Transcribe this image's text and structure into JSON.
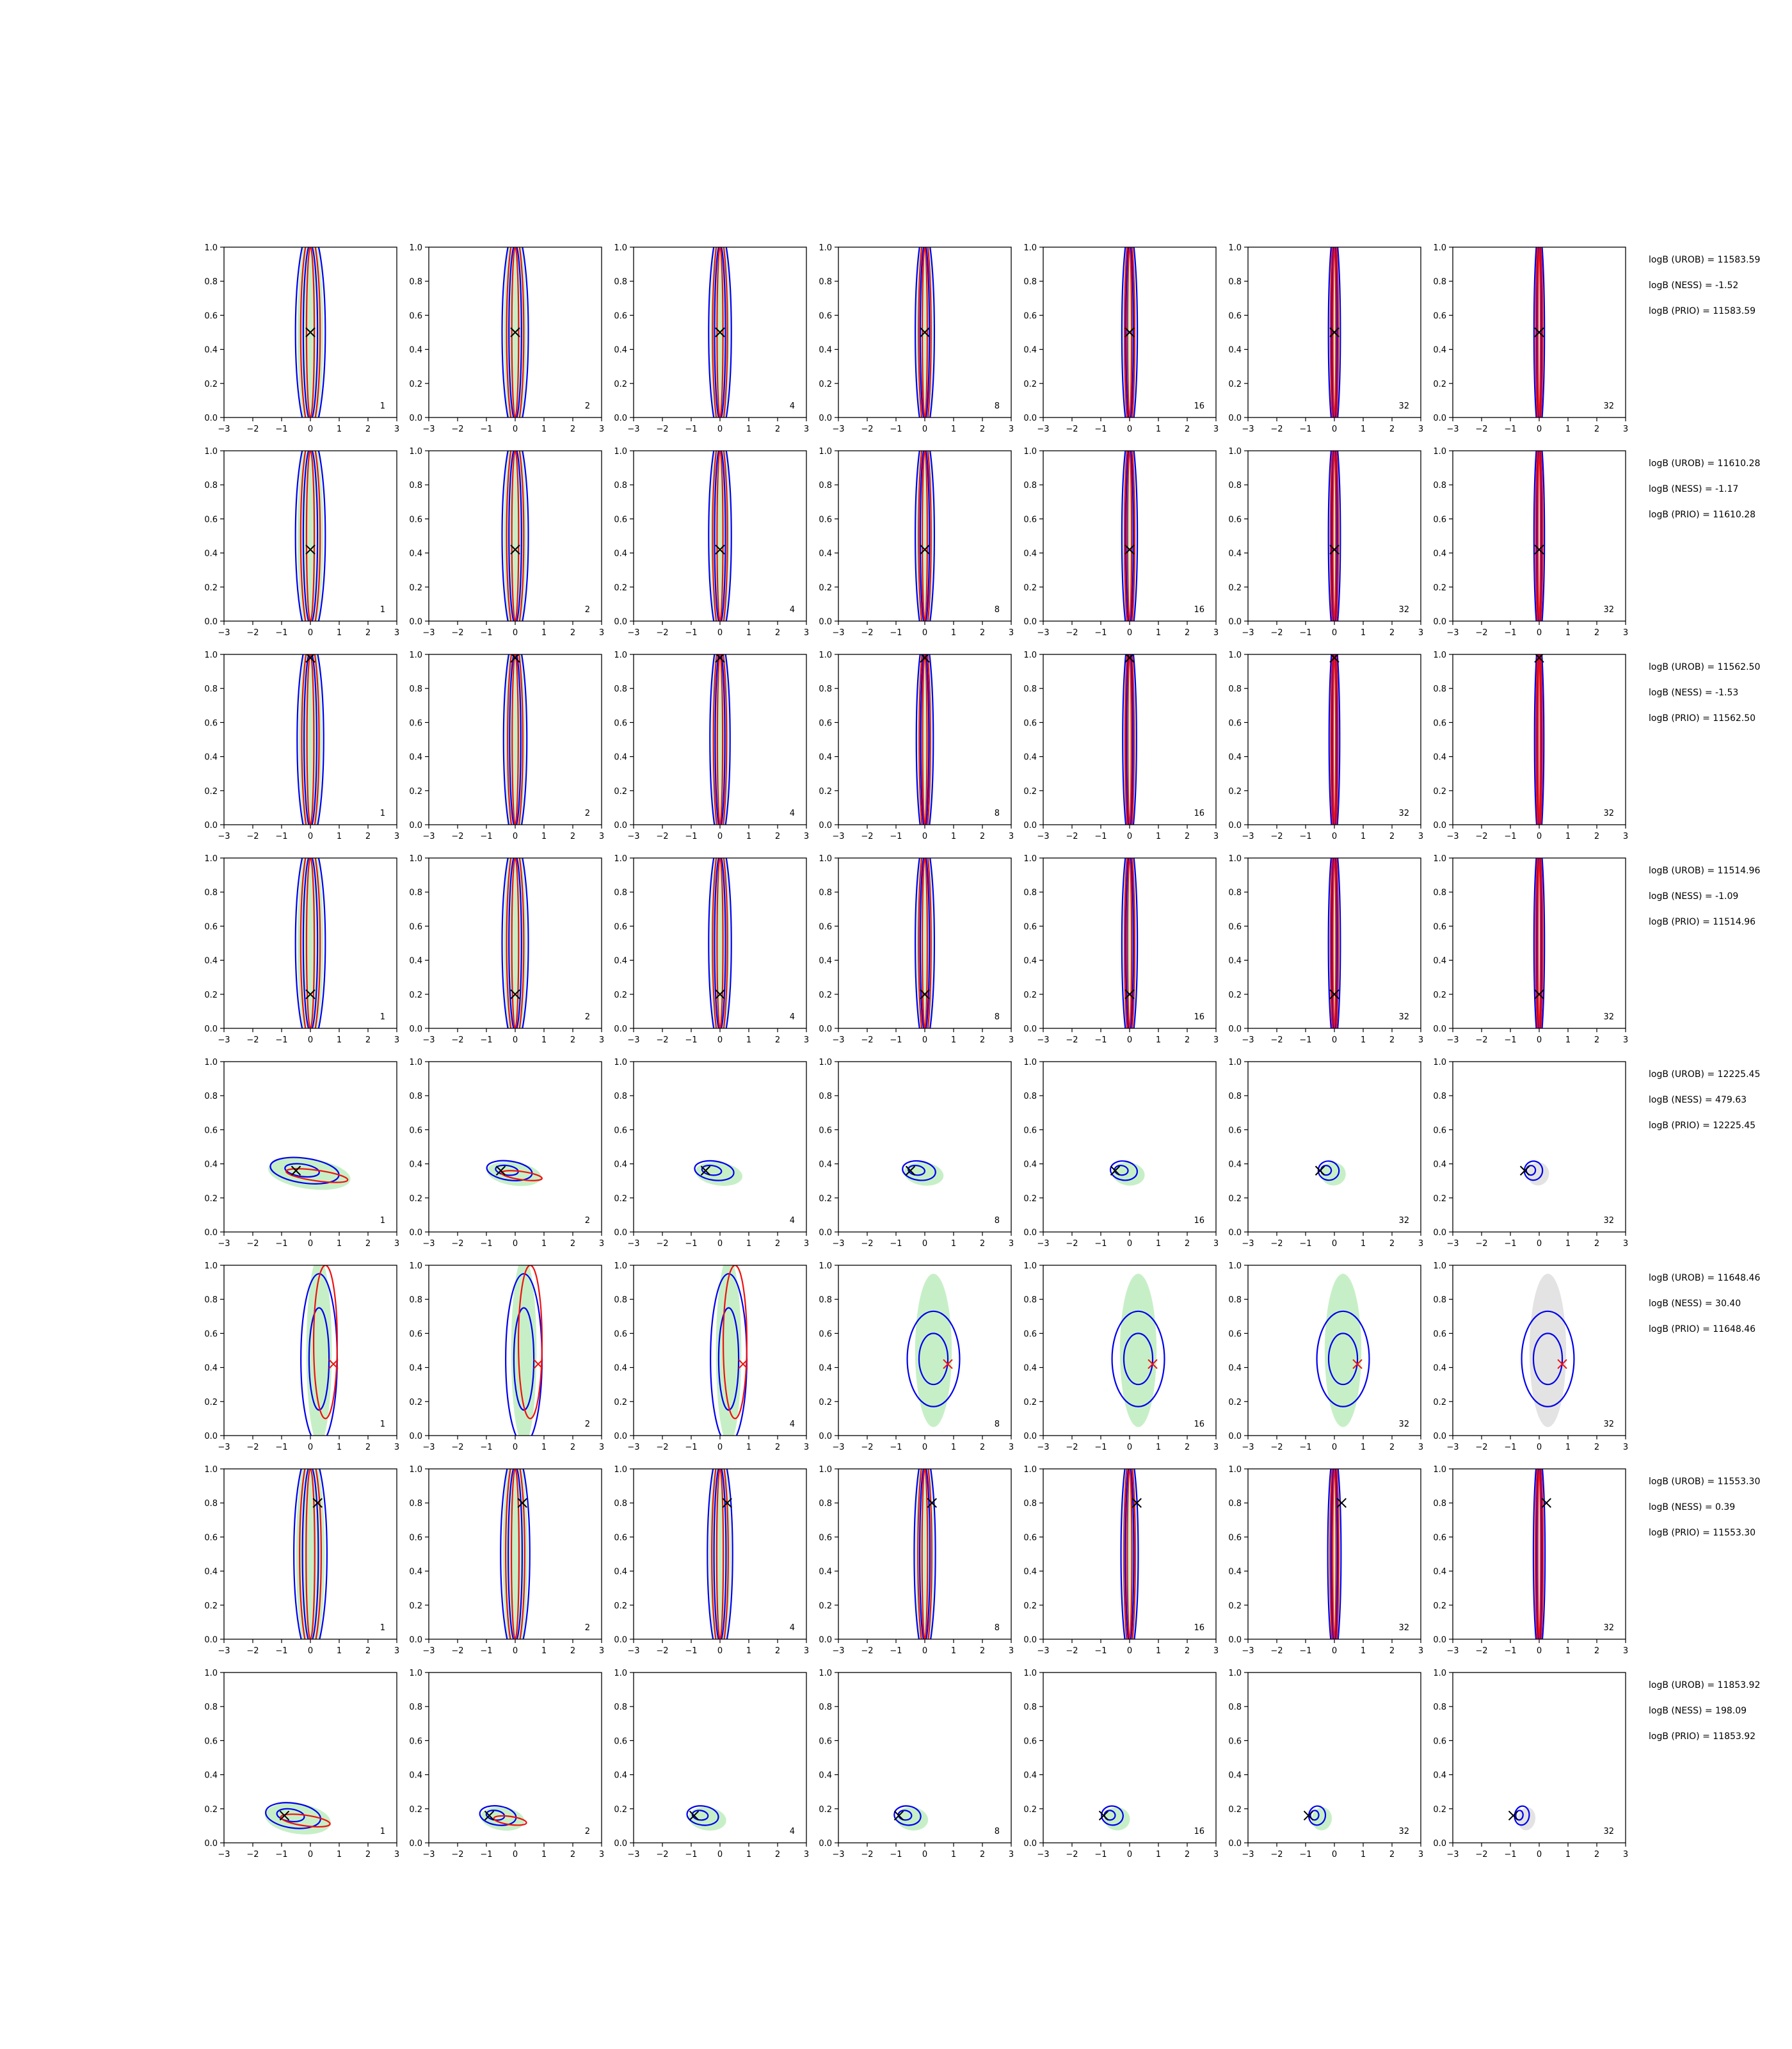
{
  "colors": {
    "green_fill": "#c7efc7",
    "grey_fill": "#e3e3e3",
    "blue_contour": "#0000ee",
    "red_contour": "#ee1111",
    "true_marker": "#000000"
  },
  "chart_data": {
    "type": "contour-grid",
    "grid": {
      "rows": 8,
      "cols": 7
    },
    "xlim": [
      -3,
      3
    ],
    "ylim": [
      0,
      1
    ],
    "xticks": [
      "−3",
      "−2",
      "−1",
      "0",
      "1",
      "2",
      "3"
    ],
    "yticks": [
      "0.0",
      "0.2",
      "0.4",
      "0.6",
      "0.8",
      "1.0"
    ],
    "column_tags": [
      "1",
      "2",
      "4",
      "8",
      "16",
      "32",
      "32"
    ],
    "rows": [
      {
        "true_point": [
          0.0,
          0.5
        ],
        "marker": "black",
        "shape": "vertical",
        "center": [
          0.0,
          0.5
        ],
        "width": 0.45,
        "logB": [
          "logB (UROB) = 11583.59",
          "logB (NESS) = -1.52",
          "logB (PRIO) = 11583.59"
        ]
      },
      {
        "true_point": [
          0.0,
          0.42
        ],
        "marker": "black",
        "shape": "vertical",
        "center": [
          0.0,
          0.5
        ],
        "width": 0.45,
        "logB": [
          "logB (UROB) = 11610.28",
          "logB (NESS) = -1.17",
          "logB (PRIO) = 11610.28"
        ]
      },
      {
        "true_point": [
          0.0,
          0.98
        ],
        "marker": "black",
        "shape": "vertical",
        "center": [
          0.0,
          0.5
        ],
        "width": 0.4,
        "logB": [
          "logB (UROB) = 11562.50",
          "logB (NESS) = -1.53",
          "logB (PRIO) = 11562.50"
        ]
      },
      {
        "true_point": [
          0.0,
          0.2
        ],
        "marker": "black",
        "shape": "vertical",
        "center": [
          0.0,
          0.5
        ],
        "width": 0.45,
        "logB": [
          "logB (UROB) = 11514.96",
          "logB (NESS) = -1.09",
          "logB (PRIO) = 11514.96"
        ]
      },
      {
        "true_point": [
          -0.5,
          0.36
        ],
        "marker": "black",
        "shape": "tilted",
        "center": [
          -0.2,
          0.36
        ],
        "width": 1.0,
        "logB": [
          "logB (UROB) = 12225.45",
          "logB (NESS) = 479.63",
          "logB (PRIO) = 12225.45"
        ]
      },
      {
        "true_point": [
          0.8,
          0.42
        ],
        "marker": "red",
        "shape": "blob",
        "center": [
          0.3,
          0.45
        ],
        "width": 0.7,
        "logB": [
          "logB (UROB) = 11648.46",
          "logB (NESS) = 30.40",
          "logB (PRIO) = 11648.46"
        ]
      },
      {
        "true_point": [
          0.25,
          0.8
        ],
        "marker": "black",
        "shape": "vertical",
        "center": [
          0.0,
          0.5
        ],
        "width": 0.5,
        "logB": [
          "logB (UROB) = 11553.30",
          "logB (NESS) = 0.39",
          "logB (PRIO) = 11553.30"
        ]
      },
      {
        "true_point": [
          -0.9,
          0.16
        ],
        "marker": "black",
        "shape": "tilted-low",
        "center": [
          -0.6,
          0.16
        ],
        "width": 0.8,
        "logB": [
          "logB (UROB) = 11853.92",
          "logB (NESS) = 198.09",
          "logB (PRIO) = 11853.92"
        ]
      }
    ]
  }
}
